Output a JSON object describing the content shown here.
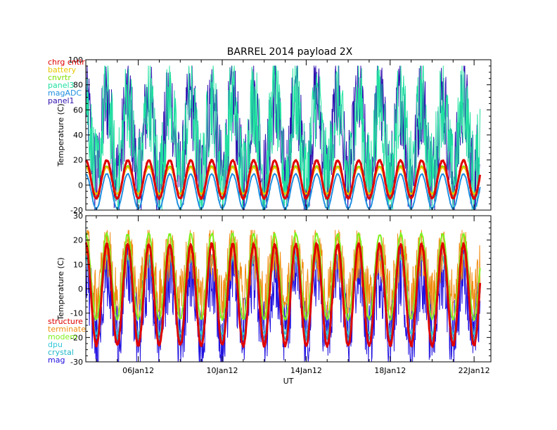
{
  "title": "BARREL 2014 payload 2X",
  "colors": {
    "chrg_cntlr": "#e00000",
    "battery": "#e8c800",
    "cnvrtr": "#7fe000",
    "panel3": "#20e0a0",
    "magADC": "#2090e0",
    "panel1": "#3010b0",
    "structure": "#e00000",
    "terminate": "#f08c10",
    "modem": "#80f020",
    "dpu": "#30c8d8",
    "crystal": "#20b8c8",
    "mag": "#2010e0"
  },
  "chart_data": [
    {
      "type": "line",
      "panel": "top",
      "ylabel": "Temperature (C)",
      "xlabel": "",
      "ylim": [
        -20,
        100
      ],
      "yticks": [
        "-20",
        "0",
        "20",
        "40",
        "60",
        "80",
        "100"
      ],
      "xlim_days": [
        3.5,
        22.8
      ],
      "xticks": [
        "06Jan12",
        "10Jan12",
        "14Jan12",
        "18Jan12",
        "22Jan12"
      ],
      "legend": [
        {
          "name": "chrg cntlr",
          "color": "#e00000"
        },
        {
          "name": "battery",
          "color": "#e8c800"
        },
        {
          "name": "cnvrtr",
          "color": "#7fe000"
        },
        {
          "name": "panel3",
          "color": "#20e0a0"
        },
        {
          "name": "magADC",
          "color": "#2090e0"
        },
        {
          "name": "panel1",
          "color": "#3010b0"
        }
      ],
      "series": [
        {
          "name": "panel1",
          "pattern": "daily oscillation",
          "min": -20,
          "max": 95
        },
        {
          "name": "panel3",
          "pattern": "daily oscillation",
          "min": -20,
          "max": 95
        },
        {
          "name": "magADC",
          "pattern": "daily oscillation",
          "min": -20,
          "max": 10
        },
        {
          "name": "cnvrtr",
          "pattern": "daily oscillation",
          "min": -8,
          "max": 16
        },
        {
          "name": "battery",
          "pattern": "daily oscillation",
          "min": -8,
          "max": 15
        },
        {
          "name": "chrg cntlr",
          "pattern": "daily oscillation",
          "min": -12,
          "max": 21
        }
      ]
    },
    {
      "type": "line",
      "panel": "bottom",
      "ylabel": "Temperature (C)",
      "xlabel": "UT",
      "ylim": [
        -30,
        30
      ],
      "yticks": [
        "-30",
        "-20",
        "-10",
        "0",
        "10",
        "20",
        "30"
      ],
      "xlim_days": [
        3.5,
        22.8
      ],
      "xticks": [
        "06Jan12",
        "10Jan12",
        "14Jan12",
        "18Jan12",
        "22Jan12"
      ],
      "legend": [
        {
          "name": "structure",
          "color": "#e00000"
        },
        {
          "name": "terminate",
          "color": "#f08c10"
        },
        {
          "name": "modem",
          "color": "#80f020"
        },
        {
          "name": "dpu",
          "color": "#30c8d8"
        },
        {
          "name": "crystal",
          "color": "#20b8c8"
        },
        {
          "name": "mag",
          "color": "#2010e0"
        }
      ],
      "series": [
        {
          "name": "mag",
          "pattern": "daily oscillation",
          "min": -30,
          "max": 18
        },
        {
          "name": "crystal",
          "pattern": "daily oscillation",
          "min": -22,
          "max": 14
        },
        {
          "name": "dpu",
          "pattern": "daily oscillation",
          "min": -20,
          "max": 15
        },
        {
          "name": "terminate",
          "pattern": "daily oscillation",
          "min": -12,
          "max": 24
        },
        {
          "name": "modem",
          "pattern": "daily oscillation",
          "min": -14,
          "max": 24
        },
        {
          "name": "structure",
          "pattern": "daily oscillation",
          "min": -25,
          "max": 20
        }
      ]
    }
  ]
}
